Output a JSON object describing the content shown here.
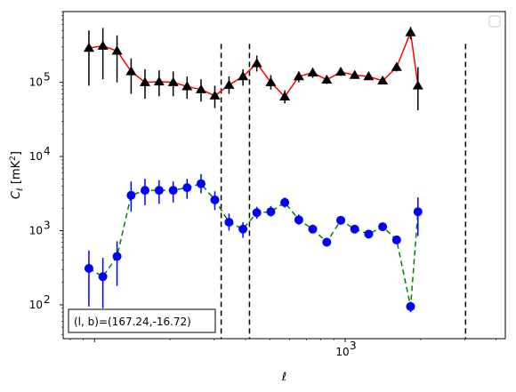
{
  "chart_data": {
    "type": "scatter",
    "xscale": "log",
    "yscale": "log",
    "xlim": [
      75,
      4350
    ],
    "ylim": [
      35,
      900000
    ],
    "x_tick_labels": [
      {
        "value": 1000,
        "label": "10",
        "exp": "3"
      }
    ],
    "y_tick_labels": [
      {
        "value": 100,
        "label": "10",
        "exp": "2"
      },
      {
        "value": 1000,
        "label": "10",
        "exp": "3"
      },
      {
        "value": 10000,
        "label": "10",
        "exp": "4"
      },
      {
        "value": 100000,
        "label": "10",
        "exp": "5"
      }
    ],
    "xlabel": "ℓ",
    "ylabel": "C",
    "ylabel_sub": "ℓ",
    "ylabel_unit": "[mK",
    "ylabel_unit_exp": "2",
    "ylabel_unit_end": "]",
    "legend": "top-right",
    "annotation": "(l, b)=(167.24,-16.72)",
    "vlines": [
      {
        "x": 320,
        "ymin": 35,
        "ymax": 330000
      },
      {
        "x": 415,
        "ymin": 35,
        "ymax": 330000
      },
      {
        "x": 3020,
        "ymin": 35,
        "ymax": 330000
      }
    ],
    "series": [
      {
        "marker": "triangle",
        "color": "#000000",
        "line_color": "#ff0000",
        "line_style": "solid",
        "points": [
          {
            "x": 95,
            "y": 290000,
            "lo": 90000,
            "hi": 500000
          },
          {
            "x": 108,
            "y": 310000,
            "lo": 110000,
            "hi": 540000
          },
          {
            "x": 123,
            "y": 265000,
            "lo": 100000,
            "hi": 430000
          },
          {
            "x": 140,
            "y": 140000,
            "lo": 70000,
            "hi": 210000
          },
          {
            "x": 159,
            "y": 100000,
            "lo": 60000,
            "hi": 150000
          },
          {
            "x": 181,
            "y": 102000,
            "lo": 65000,
            "hi": 145000
          },
          {
            "x": 206,
            "y": 100000,
            "lo": 65000,
            "hi": 140000
          },
          {
            "x": 234,
            "y": 88000,
            "lo": 60000,
            "hi": 120000
          },
          {
            "x": 266,
            "y": 80000,
            "lo": 55000,
            "hi": 110000
          },
          {
            "x": 302,
            "y": 66000,
            "lo": 45000,
            "hi": 90000
          },
          {
            "x": 344,
            "y": 92000,
            "lo": 70000,
            "hi": 120000
          },
          {
            "x": 391,
            "y": 120000,
            "lo": 90000,
            "hi": 150000
          },
          {
            "x": 444,
            "y": 180000,
            "lo": 140000,
            "hi": 230000
          },
          {
            "x": 505,
            "y": 100000,
            "lo": 80000,
            "hi": 125000
          },
          {
            "x": 574,
            "y": 64000,
            "lo": 52000,
            "hi": 78000
          },
          {
            "x": 653,
            "y": 120000,
            "lo": 100000,
            "hi": 140000
          },
          {
            "x": 742,
            "y": 135000,
            "lo": 115000,
            "hi": 155000
          },
          {
            "x": 844,
            "y": 108000,
            "lo": 95000,
            "hi": 122000
          },
          {
            "x": 960,
            "y": 138000,
            "lo": 122000,
            "hi": 155000
          },
          {
            "x": 1091,
            "y": 125000,
            "lo": 112000,
            "hi": 138000
          },
          {
            "x": 1240,
            "y": 120000,
            "lo": 108000,
            "hi": 132000
          },
          {
            "x": 1410,
            "y": 105000,
            "lo": 95000,
            "hi": 115000
          },
          {
            "x": 1603,
            "y": 160000,
            "lo": 140000,
            "hi": 180000
          },
          {
            "x": 1822,
            "y": 470000,
            "lo": 380000,
            "hi": 560000
          },
          {
            "x": 1950,
            "y": 90000,
            "lo": 42000,
            "hi": 160000
          }
        ]
      },
      {
        "marker": "circle",
        "color": "#0000ff",
        "line_color": "#008000",
        "line_style": "dashed",
        "points": [
          {
            "x": 95,
            "y": 310,
            "lo": 95,
            "hi": 540
          },
          {
            "x": 108,
            "y": 240,
            "lo": 90,
            "hi": 430
          },
          {
            "x": 123,
            "y": 450,
            "lo": 180,
            "hi": 720
          },
          {
            "x": 140,
            "y": 3000,
            "lo": 1800,
            "hi": 4600
          },
          {
            "x": 159,
            "y": 3500,
            "lo": 2200,
            "hi": 5000
          },
          {
            "x": 181,
            "y": 3500,
            "lo": 2300,
            "hi": 4800
          },
          {
            "x": 206,
            "y": 3500,
            "lo": 2400,
            "hi": 4600
          },
          {
            "x": 234,
            "y": 3800,
            "lo": 2700,
            "hi": 5000
          },
          {
            "x": 266,
            "y": 4300,
            "lo": 3200,
            "hi": 5800
          },
          {
            "x": 302,
            "y": 2600,
            "lo": 1900,
            "hi": 3400
          },
          {
            "x": 344,
            "y": 1300,
            "lo": 1000,
            "hi": 1700
          },
          {
            "x": 391,
            "y": 1050,
            "lo": 800,
            "hi": 1300
          },
          {
            "x": 444,
            "y": 1750,
            "lo": 1450,
            "hi": 2100
          },
          {
            "x": 505,
            "y": 1800,
            "lo": 1550,
            "hi": 2150
          },
          {
            "x": 574,
            "y": 2400,
            "lo": 2050,
            "hi": 2800
          },
          {
            "x": 653,
            "y": 1400,
            "lo": 1200,
            "hi": 1650
          },
          {
            "x": 742,
            "y": 1050,
            "lo": 920,
            "hi": 1200
          },
          {
            "x": 844,
            "y": 700,
            "lo": 620,
            "hi": 800
          },
          {
            "x": 960,
            "y": 1380,
            "lo": 1250,
            "hi": 1520
          },
          {
            "x": 1091,
            "y": 1050,
            "lo": 950,
            "hi": 1160
          },
          {
            "x": 1240,
            "y": 900,
            "lo": 820,
            "hi": 1000
          },
          {
            "x": 1410,
            "y": 1130,
            "lo": 1020,
            "hi": 1250
          },
          {
            "x": 1603,
            "y": 750,
            "lo": 680,
            "hi": 830
          },
          {
            "x": 1822,
            "y": 95,
            "lo": 80,
            "hi": 110
          },
          {
            "x": 1950,
            "y": 1800,
            "lo": 850,
            "hi": 2800
          }
        ]
      }
    ]
  }
}
